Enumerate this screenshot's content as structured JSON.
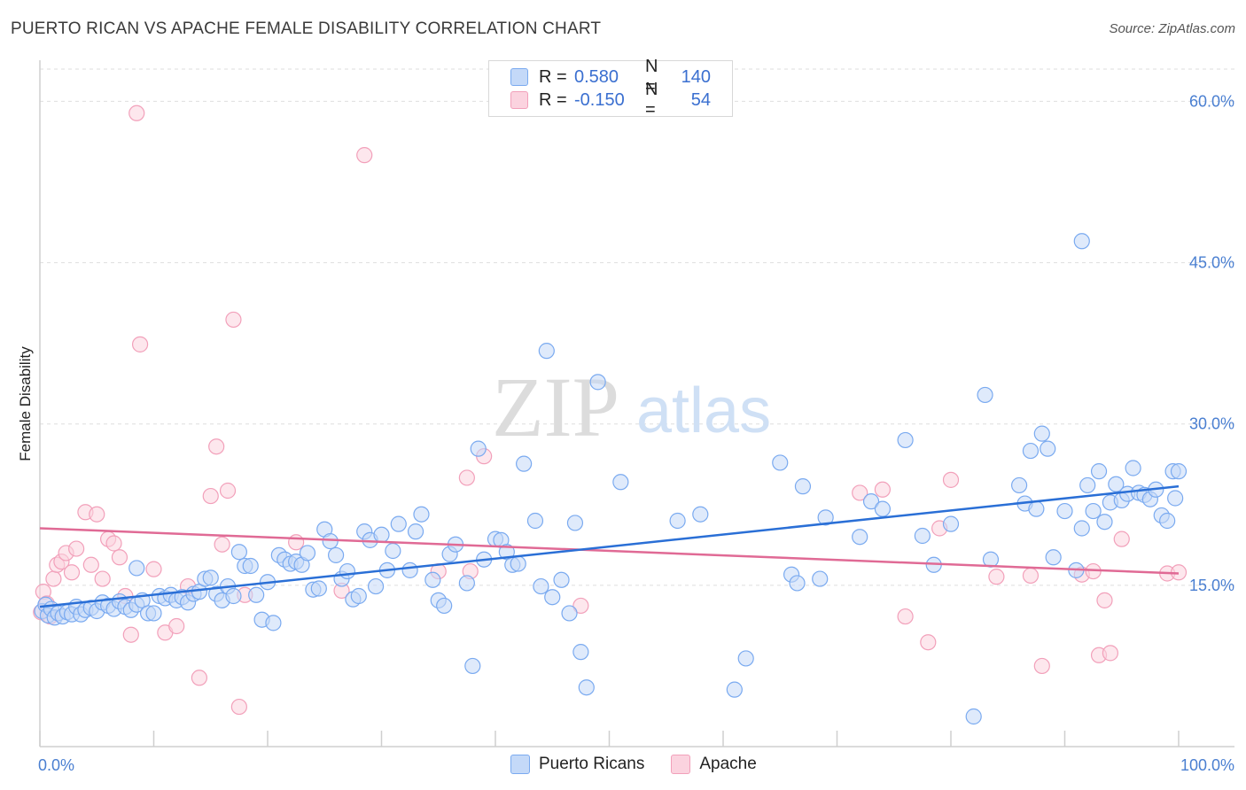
{
  "header": {
    "title": "PUERTO RICAN VS APACHE FEMALE DISABILITY CORRELATION CHART",
    "source": "Source: ZipAtlas.com"
  },
  "legend": {
    "rows": [
      {
        "r_label": "R =",
        "r_value": "0.580",
        "n_label": "N =",
        "n_value": "140",
        "color": "#7aaaf0"
      },
      {
        "r_label": "R =",
        "r_value": "-0.150",
        "n_label": "N =",
        "n_value": "54",
        "color": "#f2a0ba"
      }
    ],
    "bottom": [
      {
        "label": "Puerto Ricans",
        "color": "#7aaaf0"
      },
      {
        "label": "Apache",
        "color": "#f2a0ba"
      }
    ]
  },
  "watermark": {
    "zip": "ZIP",
    "atlas": "atlas"
  },
  "chart_data": {
    "type": "scatter",
    "title": "PUERTO RICAN VS APACHE FEMALE DISABILITY CORRELATION CHART",
    "xlabel": "",
    "ylabel": "Female Disability",
    "xlim": [
      0,
      100
    ],
    "ylim": [
      0,
      63
    ],
    "x_tick_labels": [
      "0.0%",
      "100.0%"
    ],
    "y_ticks": [
      15,
      30,
      45,
      60
    ],
    "y_tick_labels": [
      "15.0%",
      "30.0%",
      "45.0%",
      "60.0%"
    ],
    "grid": "horizontal dashed",
    "series": [
      {
        "name": "Puerto Ricans",
        "color": "#7aaaf0",
        "line_color": "#2a6fd6",
        "trend": {
          "x": [
            0,
            100
          ],
          "y": [
            13.0,
            24.2
          ]
        },
        "points": [
          [
            0.2,
            12.6
          ],
          [
            0.5,
            13.2
          ],
          [
            0.7,
            12.2
          ],
          [
            1.0,
            12.8
          ],
          [
            1.3,
            12.0
          ],
          [
            1.6,
            12.4
          ],
          [
            2.0,
            12.1
          ],
          [
            2.4,
            12.5
          ],
          [
            2.8,
            12.3
          ],
          [
            3.2,
            13.0
          ],
          [
            3.6,
            12.3
          ],
          [
            4.0,
            12.7
          ],
          [
            4.5,
            12.9
          ],
          [
            5.0,
            12.6
          ],
          [
            5.5,
            13.4
          ],
          [
            6.0,
            13.1
          ],
          [
            6.5,
            12.8
          ],
          [
            7.0,
            13.5
          ],
          [
            7.5,
            13.0
          ],
          [
            8.0,
            12.7
          ],
          [
            8.5,
            13.2
          ],
          [
            8.5,
            16.6
          ],
          [
            9.0,
            13.6
          ],
          [
            9.5,
            12.4
          ],
          [
            10.0,
            12.4
          ],
          [
            10.5,
            14.0
          ],
          [
            11.0,
            13.8
          ],
          [
            11.5,
            14.1
          ],
          [
            12.0,
            13.6
          ],
          [
            12.5,
            13.9
          ],
          [
            13.0,
            13.4
          ],
          [
            13.5,
            14.2
          ],
          [
            14.0,
            14.4
          ],
          [
            14.5,
            15.6
          ],
          [
            15.0,
            15.7
          ],
          [
            15.5,
            14.2
          ],
          [
            16.0,
            13.6
          ],
          [
            16.5,
            14.9
          ],
          [
            17.0,
            14.0
          ],
          [
            17.5,
            18.1
          ],
          [
            18.0,
            16.8
          ],
          [
            18.5,
            16.8
          ],
          [
            19.0,
            14.1
          ],
          [
            19.5,
            11.8
          ],
          [
            20.0,
            15.3
          ],
          [
            20.5,
            11.5
          ],
          [
            21.0,
            17.8
          ],
          [
            21.5,
            17.4
          ],
          [
            22.0,
            17.0
          ],
          [
            22.5,
            17.2
          ],
          [
            23.0,
            16.9
          ],
          [
            23.5,
            18.0
          ],
          [
            24.0,
            14.6
          ],
          [
            24.5,
            14.7
          ],
          [
            25.0,
            20.2
          ],
          [
            25.5,
            19.1
          ],
          [
            26.0,
            17.8
          ],
          [
            26.5,
            15.6
          ],
          [
            27.0,
            16.3
          ],
          [
            27.5,
            13.7
          ],
          [
            28.0,
            14.0
          ],
          [
            28.5,
            20.0
          ],
          [
            29.0,
            19.2
          ],
          [
            29.5,
            14.9
          ],
          [
            30.0,
            19.7
          ],
          [
            30.5,
            16.4
          ],
          [
            31.0,
            18.2
          ],
          [
            31.5,
            20.7
          ],
          [
            32.5,
            16.4
          ],
          [
            33.0,
            20.0
          ],
          [
            33.5,
            21.6
          ],
          [
            34.5,
            15.5
          ],
          [
            35.0,
            13.6
          ],
          [
            35.5,
            13.1
          ],
          [
            36.0,
            17.9
          ],
          [
            36.5,
            18.8
          ],
          [
            37.5,
            15.2
          ],
          [
            38.0,
            7.5
          ],
          [
            38.5,
            27.7
          ],
          [
            39.0,
            17.4
          ],
          [
            40.0,
            19.3
          ],
          [
            40.5,
            19.2
          ],
          [
            41.0,
            18.1
          ],
          [
            41.5,
            16.9
          ],
          [
            42.0,
            17.0
          ],
          [
            42.5,
            26.3
          ],
          [
            43.5,
            21.0
          ],
          [
            44.0,
            14.9
          ],
          [
            44.5,
            36.8
          ],
          [
            45.0,
            13.9
          ],
          [
            45.8,
            15.5
          ],
          [
            46.5,
            12.4
          ],
          [
            47.0,
            20.8
          ],
          [
            47.5,
            8.8
          ],
          [
            48.0,
            5.5
          ],
          [
            49.0,
            33.9
          ],
          [
            51.0,
            24.6
          ],
          [
            56.0,
            21.0
          ],
          [
            58.0,
            21.6
          ],
          [
            61.0,
            5.3
          ],
          [
            62.0,
            8.2
          ],
          [
            65.0,
            26.4
          ],
          [
            66.0,
            16.0
          ],
          [
            66.5,
            15.2
          ],
          [
            67.0,
            24.2
          ],
          [
            68.5,
            15.6
          ],
          [
            69.0,
            21.3
          ],
          [
            72.0,
            19.5
          ],
          [
            73.0,
            22.8
          ],
          [
            74.0,
            22.1
          ],
          [
            76.0,
            28.5
          ],
          [
            77.5,
            19.6
          ],
          [
            78.5,
            16.9
          ],
          [
            80.0,
            20.7
          ],
          [
            82.0,
            2.8
          ],
          [
            83.0,
            32.7
          ],
          [
            83.5,
            17.4
          ],
          [
            86.0,
            24.3
          ],
          [
            86.5,
            22.6
          ],
          [
            87.0,
            27.5
          ],
          [
            87.5,
            22.1
          ],
          [
            88.0,
            29.1
          ],
          [
            88.5,
            27.7
          ],
          [
            89.0,
            17.6
          ],
          [
            90.0,
            21.9
          ],
          [
            91.0,
            16.4
          ],
          [
            91.5,
            20.3
          ],
          [
            91.5,
            47.0
          ],
          [
            92.0,
            24.3
          ],
          [
            92.5,
            21.9
          ],
          [
            93.0,
            25.6
          ],
          [
            93.5,
            20.9
          ],
          [
            94.0,
            22.7
          ],
          [
            94.5,
            24.4
          ],
          [
            95.0,
            22.9
          ],
          [
            95.5,
            23.5
          ],
          [
            96.0,
            25.9
          ],
          [
            96.5,
            23.6
          ],
          [
            97.0,
            23.4
          ],
          [
            97.5,
            23.0
          ],
          [
            98.0,
            23.9
          ],
          [
            98.5,
            21.5
          ],
          [
            99.0,
            21.0
          ],
          [
            99.5,
            25.6
          ],
          [
            99.7,
            23.1
          ],
          [
            100.0,
            25.6
          ]
        ]
      },
      {
        "name": "Apache",
        "color": "#f2a0ba",
        "line_color": "#e06a95",
        "trend": {
          "x": [
            0,
            100
          ],
          "y": [
            20.3,
            16.1
          ]
        },
        "points": [
          [
            0.1,
            12.5
          ],
          [
            0.3,
            14.4
          ],
          [
            0.6,
            13.3
          ],
          [
            0.9,
            12.1
          ],
          [
            1.2,
            15.6
          ],
          [
            1.5,
            16.9
          ],
          [
            1.9,
            17.2
          ],
          [
            2.3,
            18.0
          ],
          [
            2.8,
            16.2
          ],
          [
            3.2,
            18.4
          ],
          [
            4.0,
            21.8
          ],
          [
            4.5,
            16.9
          ],
          [
            5.0,
            21.6
          ],
          [
            5.5,
            15.6
          ],
          [
            6.0,
            19.3
          ],
          [
            6.5,
            18.9
          ],
          [
            7.0,
            17.6
          ],
          [
            7.5,
            14.0
          ],
          [
            8.0,
            10.4
          ],
          [
            8.5,
            58.9
          ],
          [
            8.8,
            37.4
          ],
          [
            10.0,
            16.5
          ],
          [
            11.0,
            10.6
          ],
          [
            12.0,
            11.2
          ],
          [
            13.0,
            14.9
          ],
          [
            14.0,
            6.4
          ],
          [
            15.0,
            23.3
          ],
          [
            15.5,
            27.9
          ],
          [
            16.0,
            18.8
          ],
          [
            16.5,
            23.8
          ],
          [
            17.0,
            39.7
          ],
          [
            17.5,
            3.7
          ],
          [
            18.0,
            14.1
          ],
          [
            22.5,
            19.0
          ],
          [
            26.5,
            14.5
          ],
          [
            28.5,
            55.0
          ],
          [
            35.0,
            16.3
          ],
          [
            37.5,
            25.0
          ],
          [
            37.8,
            16.3
          ],
          [
            39.0,
            27.0
          ],
          [
            47.5,
            13.1
          ],
          [
            72.0,
            23.6
          ],
          [
            74.0,
            23.9
          ],
          [
            76.0,
            12.1
          ],
          [
            78.0,
            9.7
          ],
          [
            79.0,
            20.3
          ],
          [
            80.0,
            24.8
          ],
          [
            84.0,
            15.8
          ],
          [
            87.0,
            15.9
          ],
          [
            88.0,
            7.5
          ],
          [
            91.5,
            16.0
          ],
          [
            92.5,
            16.3
          ],
          [
            93.0,
            8.5
          ],
          [
            93.5,
            13.6
          ],
          [
            94.0,
            8.7
          ],
          [
            95.0,
            19.3
          ],
          [
            99.0,
            16.1
          ],
          [
            100.0,
            16.2
          ]
        ]
      }
    ]
  }
}
